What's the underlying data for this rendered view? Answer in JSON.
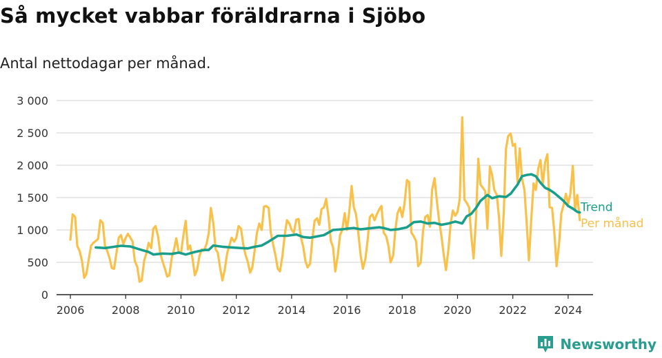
{
  "title": "Så mycket vabbar föräldrarna i Sjöbo",
  "subtitle": "Antal nettodagar per månad.",
  "brand": {
    "name": "Newsworthy",
    "icon": "bar-chart-logo-icon",
    "color": "#2a9d8f"
  },
  "chart_data": {
    "type": "line",
    "xlim": [
      2005.5,
      2024.9
    ],
    "ylim": [
      0,
      3000
    ],
    "x_ticks": [
      2006,
      2008,
      2010,
      2012,
      2014,
      2016,
      2018,
      2020,
      2022,
      2024
    ],
    "y_ticks": [
      0,
      500,
      1000,
      1500,
      2000,
      2500,
      3000
    ],
    "y_tick_labels": [
      "0",
      "500",
      "1 000",
      "1 500",
      "2 000",
      "2 500",
      "3 000"
    ],
    "grid": true,
    "series": [
      {
        "name": "Per månad",
        "color": "#f9c04a",
        "points": [
          [
            2006.0,
            850
          ],
          [
            2006.08,
            1240
          ],
          [
            2006.17,
            1200
          ],
          [
            2006.25,
            750
          ],
          [
            2006.33,
            680
          ],
          [
            2006.42,
            520
          ],
          [
            2006.5,
            260
          ],
          [
            2006.58,
            320
          ],
          [
            2006.67,
            560
          ],
          [
            2006.75,
            760
          ],
          [
            2006.83,
            800
          ],
          [
            2006.92,
            830
          ],
          [
            2007.0,
            860
          ],
          [
            2007.08,
            1150
          ],
          [
            2007.17,
            1110
          ],
          [
            2007.25,
            760
          ],
          [
            2007.33,
            680
          ],
          [
            2007.42,
            560
          ],
          [
            2007.5,
            410
          ],
          [
            2007.58,
            400
          ],
          [
            2007.67,
            650
          ],
          [
            2007.75,
            880
          ],
          [
            2007.83,
            920
          ],
          [
            2007.92,
            780
          ],
          [
            2008.0,
            880
          ],
          [
            2008.08,
            940
          ],
          [
            2008.17,
            880
          ],
          [
            2008.25,
            820
          ],
          [
            2008.33,
            520
          ],
          [
            2008.42,
            430
          ],
          [
            2008.5,
            200
          ],
          [
            2008.58,
            220
          ],
          [
            2008.67,
            530
          ],
          [
            2008.75,
            640
          ],
          [
            2008.83,
            800
          ],
          [
            2008.92,
            720
          ],
          [
            2009.0,
            1020
          ],
          [
            2009.08,
            1060
          ],
          [
            2009.17,
            900
          ],
          [
            2009.25,
            640
          ],
          [
            2009.33,
            520
          ],
          [
            2009.42,
            400
          ],
          [
            2009.5,
            280
          ],
          [
            2009.58,
            300
          ],
          [
            2009.67,
            580
          ],
          [
            2009.75,
            700
          ],
          [
            2009.83,
            870
          ],
          [
            2009.92,
            650
          ],
          [
            2010.0,
            640
          ],
          [
            2010.08,
            900
          ],
          [
            2010.17,
            1140
          ],
          [
            2010.25,
            700
          ],
          [
            2010.33,
            760
          ],
          [
            2010.42,
            550
          ],
          [
            2010.5,
            300
          ],
          [
            2010.58,
            380
          ],
          [
            2010.67,
            600
          ],
          [
            2010.75,
            700
          ],
          [
            2010.83,
            680
          ],
          [
            2010.92,
            780
          ],
          [
            2011.0,
            940
          ],
          [
            2011.08,
            1340
          ],
          [
            2011.17,
            1100
          ],
          [
            2011.25,
            700
          ],
          [
            2011.33,
            650
          ],
          [
            2011.42,
            400
          ],
          [
            2011.5,
            220
          ],
          [
            2011.58,
            380
          ],
          [
            2011.67,
            640
          ],
          [
            2011.75,
            760
          ],
          [
            2011.83,
            880
          ],
          [
            2011.92,
            820
          ],
          [
            2012.0,
            880
          ],
          [
            2012.08,
            1060
          ],
          [
            2012.17,
            1020
          ],
          [
            2012.25,
            780
          ],
          [
            2012.33,
            620
          ],
          [
            2012.42,
            500
          ],
          [
            2012.5,
            340
          ],
          [
            2012.58,
            420
          ],
          [
            2012.67,
            700
          ],
          [
            2012.75,
            960
          ],
          [
            2012.83,
            1100
          ],
          [
            2012.92,
            1000
          ],
          [
            2013.0,
            1360
          ],
          [
            2013.08,
            1370
          ],
          [
            2013.17,
            1340
          ],
          [
            2013.25,
            950
          ],
          [
            2013.33,
            780
          ],
          [
            2013.42,
            600
          ],
          [
            2013.5,
            400
          ],
          [
            2013.58,
            360
          ],
          [
            2013.67,
            600
          ],
          [
            2013.75,
            920
          ],
          [
            2013.83,
            1150
          ],
          [
            2013.92,
            1100
          ],
          [
            2014.0,
            1000
          ],
          [
            2014.08,
            960
          ],
          [
            2014.17,
            1160
          ],
          [
            2014.25,
            1170
          ],
          [
            2014.33,
            900
          ],
          [
            2014.42,
            740
          ],
          [
            2014.5,
            520
          ],
          [
            2014.58,
            420
          ],
          [
            2014.67,
            480
          ],
          [
            2014.75,
            860
          ],
          [
            2014.83,
            1140
          ],
          [
            2014.92,
            1180
          ],
          [
            2015.0,
            1080
          ],
          [
            2015.08,
            1320
          ],
          [
            2015.17,
            1350
          ],
          [
            2015.25,
            1480
          ],
          [
            2015.33,
            1220
          ],
          [
            2015.42,
            830
          ],
          [
            2015.5,
            730
          ],
          [
            2015.58,
            360
          ],
          [
            2015.67,
            600
          ],
          [
            2015.75,
            920
          ],
          [
            2015.83,
            1000
          ],
          [
            2015.92,
            1260
          ],
          [
            2016.0,
            1000
          ],
          [
            2016.08,
            1260
          ],
          [
            2016.17,
            1680
          ],
          [
            2016.25,
            1350
          ],
          [
            2016.33,
            1240
          ],
          [
            2016.42,
            920
          ],
          [
            2016.5,
            600
          ],
          [
            2016.58,
            400
          ],
          [
            2016.67,
            560
          ],
          [
            2016.75,
            850
          ],
          [
            2016.83,
            1200
          ],
          [
            2016.92,
            1240
          ],
          [
            2017.0,
            1150
          ],
          [
            2017.08,
            1240
          ],
          [
            2017.17,
            1320
          ],
          [
            2017.25,
            1370
          ],
          [
            2017.33,
            960
          ],
          [
            2017.42,
            900
          ],
          [
            2017.5,
            760
          ],
          [
            2017.58,
            500
          ],
          [
            2017.67,
            600
          ],
          [
            2017.75,
            1000
          ],
          [
            2017.83,
            1260
          ],
          [
            2017.92,
            1350
          ],
          [
            2018.0,
            1200
          ],
          [
            2018.08,
            1400
          ],
          [
            2018.17,
            1770
          ],
          [
            2018.25,
            1740
          ],
          [
            2018.33,
            960
          ],
          [
            2018.42,
            900
          ],
          [
            2018.5,
            830
          ],
          [
            2018.58,
            440
          ],
          [
            2018.67,
            500
          ],
          [
            2018.75,
            980
          ],
          [
            2018.83,
            1200
          ],
          [
            2018.92,
            1230
          ],
          [
            2019.0,
            1050
          ],
          [
            2019.08,
            1620
          ],
          [
            2019.17,
            1800
          ],
          [
            2019.25,
            1460
          ],
          [
            2019.33,
            1160
          ],
          [
            2019.42,
            900
          ],
          [
            2019.5,
            620
          ],
          [
            2019.58,
            380
          ],
          [
            2019.67,
            700
          ],
          [
            2019.75,
            1100
          ],
          [
            2019.83,
            1300
          ],
          [
            2019.92,
            1220
          ],
          [
            2020.0,
            1280
          ],
          [
            2020.08,
            1480
          ],
          [
            2020.17,
            2740
          ],
          [
            2020.25,
            1470
          ],
          [
            2020.33,
            1420
          ],
          [
            2020.42,
            1350
          ],
          [
            2020.5,
            900
          ],
          [
            2020.58,
            560
          ],
          [
            2020.67,
            1200
          ],
          [
            2020.75,
            2100
          ],
          [
            2020.83,
            1700
          ],
          [
            2020.92,
            1650
          ],
          [
            2021.0,
            1600
          ],
          [
            2021.08,
            1020
          ],
          [
            2021.17,
            1980
          ],
          [
            2021.25,
            1850
          ],
          [
            2021.33,
            1620
          ],
          [
            2021.42,
            1540
          ],
          [
            2021.5,
            1200
          ],
          [
            2021.58,
            600
          ],
          [
            2021.67,
            1260
          ],
          [
            2021.75,
            2250
          ],
          [
            2021.83,
            2450
          ],
          [
            2021.92,
            2490
          ],
          [
            2022.0,
            2300
          ],
          [
            2022.08,
            2330
          ],
          [
            2022.17,
            1740
          ],
          [
            2022.25,
            2260
          ],
          [
            2022.33,
            1800
          ],
          [
            2022.42,
            1620
          ],
          [
            2022.5,
            1100
          ],
          [
            2022.58,
            530
          ],
          [
            2022.67,
            1200
          ],
          [
            2022.75,
            1720
          ],
          [
            2022.83,
            1620
          ],
          [
            2022.92,
            1950
          ],
          [
            2023.0,
            2080
          ],
          [
            2023.08,
            1700
          ],
          [
            2023.17,
            2050
          ],
          [
            2023.25,
            2170
          ],
          [
            2023.33,
            1350
          ],
          [
            2023.42,
            1340
          ],
          [
            2023.5,
            960
          ],
          [
            2023.58,
            440
          ],
          [
            2023.67,
            780
          ],
          [
            2023.75,
            1250
          ],
          [
            2023.83,
            1380
          ],
          [
            2023.92,
            1560
          ],
          [
            2024.0,
            1400
          ],
          [
            2024.08,
            1560
          ],
          [
            2024.17,
            1990
          ],
          [
            2024.25,
            1300
          ],
          [
            2024.33,
            1540
          ],
          [
            2024.42,
            1150
          ]
        ]
      },
      {
        "name": "Trend",
        "color": "#1a9e8c",
        "points": [
          [
            2006.92,
            730
          ],
          [
            2007.25,
            720
          ],
          [
            2007.5,
            735
          ],
          [
            2007.83,
            755
          ],
          [
            2008.17,
            745
          ],
          [
            2008.5,
            700
          ],
          [
            2008.83,
            660
          ],
          [
            2009.0,
            620
          ],
          [
            2009.33,
            635
          ],
          [
            2009.67,
            630
          ],
          [
            2009.92,
            650
          ],
          [
            2010.17,
            620
          ],
          [
            2010.5,
            660
          ],
          [
            2010.83,
            690
          ],
          [
            2011.0,
            690
          ],
          [
            2011.17,
            760
          ],
          [
            2011.5,
            740
          ],
          [
            2011.83,
            730
          ],
          [
            2012.17,
            720
          ],
          [
            2012.42,
            715
          ],
          [
            2012.67,
            740
          ],
          [
            2012.92,
            760
          ],
          [
            2013.17,
            820
          ],
          [
            2013.5,
            910
          ],
          [
            2013.83,
            910
          ],
          [
            2014.17,
            930
          ],
          [
            2014.42,
            890
          ],
          [
            2014.67,
            880
          ],
          [
            2014.92,
            900
          ],
          [
            2015.17,
            920
          ],
          [
            2015.5,
            1000
          ],
          [
            2015.83,
            1010
          ],
          [
            2016.0,
            1020
          ],
          [
            2016.25,
            1030
          ],
          [
            2016.5,
            1010
          ],
          [
            2016.83,
            1025
          ],
          [
            2017.17,
            1040
          ],
          [
            2017.33,
            1030
          ],
          [
            2017.58,
            1000
          ],
          [
            2017.83,
            1010
          ],
          [
            2018.17,
            1040
          ],
          [
            2018.42,
            1120
          ],
          [
            2018.67,
            1130
          ],
          [
            2018.92,
            1100
          ],
          [
            2019.17,
            1110
          ],
          [
            2019.42,
            1080
          ],
          [
            2019.67,
            1100
          ],
          [
            2019.92,
            1130
          ],
          [
            2020.17,
            1100
          ],
          [
            2020.33,
            1210
          ],
          [
            2020.5,
            1250
          ],
          [
            2020.67,
            1340
          ],
          [
            2020.83,
            1450
          ],
          [
            2021.08,
            1540
          ],
          [
            2021.25,
            1490
          ],
          [
            2021.5,
            1520
          ],
          [
            2021.75,
            1510
          ],
          [
            2021.92,
            1560
          ],
          [
            2022.17,
            1700
          ],
          [
            2022.33,
            1830
          ],
          [
            2022.5,
            1850
          ],
          [
            2022.67,
            1860
          ],
          [
            2022.83,
            1830
          ],
          [
            2023.0,
            1730
          ],
          [
            2023.17,
            1650
          ],
          [
            2023.33,
            1620
          ],
          [
            2023.5,
            1570
          ],
          [
            2023.67,
            1510
          ],
          [
            2023.83,
            1450
          ],
          [
            2024.0,
            1370
          ],
          [
            2024.17,
            1330
          ],
          [
            2024.33,
            1280
          ],
          [
            2024.42,
            1270
          ]
        ]
      }
    ]
  }
}
